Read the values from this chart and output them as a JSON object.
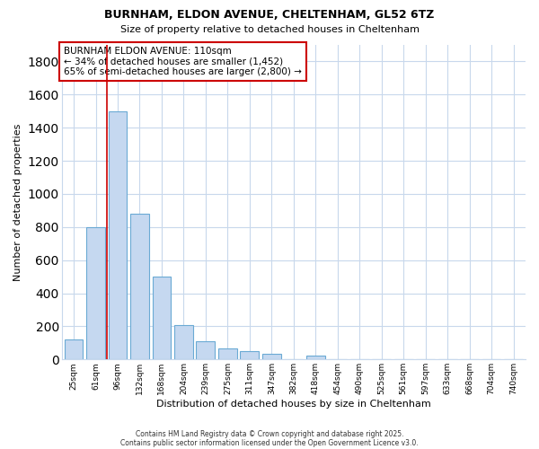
{
  "title_line1": "BURNHAM, ELDON AVENUE, CHELTENHAM, GL52 6TZ",
  "title_line2": "Size of property relative to detached houses in Cheltenham",
  "xlabel": "Distribution of detached houses by size in Cheltenham",
  "ylabel": "Number of detached properties",
  "categories": [
    "25sqm",
    "61sqm",
    "96sqm",
    "132sqm",
    "168sqm",
    "204sqm",
    "239sqm",
    "275sqm",
    "311sqm",
    "347sqm",
    "382sqm",
    "418sqm",
    "454sqm",
    "490sqm",
    "525sqm",
    "561sqm",
    "597sqm",
    "633sqm",
    "668sqm",
    "704sqm",
    "740sqm"
  ],
  "values": [
    120,
    800,
    1500,
    880,
    500,
    210,
    110,
    65,
    50,
    35,
    0,
    25,
    0,
    0,
    0,
    0,
    0,
    0,
    0,
    0,
    0
  ],
  "bar_color": "#c5d8f0",
  "bar_edge_color": "#6aaad4",
  "background_color": "#ffffff",
  "grid_color": "#c8d8ec",
  "red_line_x": 1.5,
  "ylim": [
    0,
    1900
  ],
  "yticks": [
    0,
    200,
    400,
    600,
    800,
    1000,
    1200,
    1400,
    1600,
    1800
  ],
  "annotation_text": "BURNHAM ELDON AVENUE: 110sqm\n← 34% of detached houses are smaller (1,452)\n65% of semi-detached houses are larger (2,800) →",
  "annotation_box_color": "#ffffff",
  "annotation_box_edge": "#cc0000",
  "footer_line1": "Contains HM Land Registry data © Crown copyright and database right 2025.",
  "footer_line2": "Contains public sector information licensed under the Open Government Licence v3.0."
}
